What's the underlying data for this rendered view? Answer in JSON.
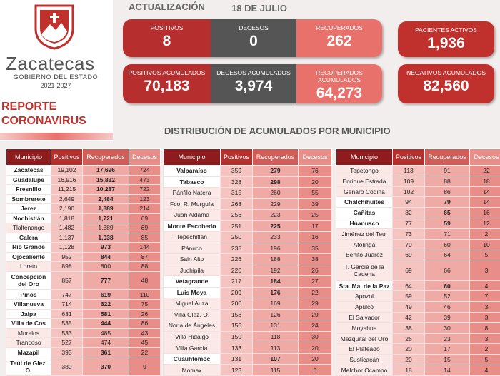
{
  "header": {
    "brand": "Zacatecas",
    "government": "GOBIERNO DEL ESTADO",
    "period": "2021-2027",
    "report": [
      "REPORTE",
      "CORONAVIRUS"
    ]
  },
  "update": {
    "label": "ACTUALIZACIÓN",
    "date": "18 DE JULIO"
  },
  "stats": [
    {
      "label": "POSITIVOS",
      "value": "8"
    },
    {
      "label": "DECESOS",
      "value": "0"
    },
    {
      "label": "RECUPERADOS",
      "value": "262"
    },
    {
      "label": "PACIENTES ACTIVOS",
      "value": "1,936"
    },
    {
      "label": "POSITIVOS ACUMULADOS",
      "value": "70,183"
    },
    {
      "label": "DECESOS ACUMULADOS",
      "value": "3,974"
    },
    {
      "label": "RECUPERADOS ACUMULADOS",
      "value": "64,273"
    },
    {
      "label": "NEGATIVOS ACUMULADOS",
      "value": "82,560"
    }
  ],
  "section_title": "DISTRIBUCIÓN DE ACUMULADOS POR MUNICIPIO",
  "tables": [
    {
      "columns": [
        "Municipio",
        "Positivos",
        "Recuperados",
        "Decesos"
      ],
      "rows": [
        [
          "Zacatecas",
          "19,102",
          "17,696",
          "724"
        ],
        [
          "Guadalupe",
          "16,916",
          "15,832",
          "473"
        ],
        [
          "Fresnillo",
          "11,215",
          "10,287",
          "722"
        ],
        [
          "Sombrerete",
          "2,649",
          "2,484",
          "123"
        ],
        [
          "Jerez",
          "2,190",
          "1,889",
          "214"
        ],
        [
          "Nochistlán",
          "1,818",
          "1,721",
          "69"
        ],
        [
          "Tlaltenango",
          "1,482",
          "1,389",
          "69"
        ],
        [
          "Calera",
          "1,137",
          "1,038",
          "85"
        ],
        [
          "Río Grande",
          "1,128",
          "973",
          "144"
        ],
        [
          "Ojocaliente",
          "952",
          "844",
          "87"
        ],
        [
          "Loreto",
          "898",
          "800",
          "88"
        ],
        [
          "Concepción del Oro",
          "857",
          "777",
          "48"
        ],
        [
          "Pinos",
          "747",
          "619",
          "110"
        ],
        [
          "Villanueva",
          "714",
          "622",
          "75"
        ],
        [
          "Jalpa",
          "631",
          "581",
          "26"
        ],
        [
          "Villa de Cos",
          "535",
          "444",
          "86"
        ],
        [
          "Morelos",
          "533",
          "485",
          "43"
        ],
        [
          "Trancoso",
          "527",
          "474",
          "45"
        ],
        [
          "Mazapil",
          "393",
          "361",
          "22"
        ],
        [
          "Teúl de Glez. O.",
          "380",
          "370",
          "9"
        ]
      ]
    },
    {
      "columns": [
        "Municipio",
        "Positivos",
        "Recuperados",
        "Decesos"
      ],
      "rows": [
        [
          "Valparaíso",
          "359",
          "279",
          "76"
        ],
        [
          "Tabasco",
          "328",
          "298",
          "20"
        ],
        [
          "Pánfilo Natera",
          "315",
          "260",
          "55"
        ],
        [
          "Fco. R. Murguía",
          "268",
          "229",
          "39"
        ],
        [
          "Juan Aldama",
          "256",
          "223",
          "25"
        ],
        [
          "Monte Escobedo",
          "251",
          "225",
          "17"
        ],
        [
          "Tepechitlán",
          "250",
          "233",
          "16"
        ],
        [
          "Pánuco",
          "235",
          "196",
          "35"
        ],
        [
          "Sain Alto",
          "226",
          "188",
          "38"
        ],
        [
          "Juchipila",
          "220",
          "192",
          "26"
        ],
        [
          "Vetagrande",
          "217",
          "184",
          "27"
        ],
        [
          "Luis Moya",
          "209",
          "176",
          "22"
        ],
        [
          "Miguel Auza",
          "200",
          "169",
          "29"
        ],
        [
          "Villa Glez. O.",
          "158",
          "126",
          "29"
        ],
        [
          "Noria de Ángeles",
          "156",
          "131",
          "24"
        ],
        [
          "Villa Hidalgo",
          "150",
          "118",
          "30"
        ],
        [
          "Villa García",
          "133",
          "113",
          "20"
        ],
        [
          "Cuauhtémoc",
          "131",
          "107",
          "20"
        ],
        [
          "Momax",
          "123",
          "115",
          "6"
        ]
      ]
    },
    {
      "columns": [
        "Municipio",
        "Positivos",
        "Recuperados",
        "Decesos"
      ],
      "rows": [
        [
          "Tepetongo",
          "113",
          "91",
          "22"
        ],
        [
          "Enrique Estrada",
          "109",
          "88",
          "18"
        ],
        [
          "Genaro Codina",
          "102",
          "86",
          "14"
        ],
        [
          "Chalchihuites",
          "94",
          "79",
          "14"
        ],
        [
          "Cañitas",
          "82",
          "65",
          "16"
        ],
        [
          "Huanusco",
          "77",
          "59",
          "12"
        ],
        [
          "Jiménez del Teul",
          "73",
          "71",
          "2"
        ],
        [
          "Atolinga",
          "70",
          "60",
          "10"
        ],
        [
          "Benito Juárez",
          "69",
          "64",
          "5"
        ],
        [
          "T. García de la Cadena",
          "69",
          "66",
          "3"
        ],
        [
          "Sta. Ma. de la Paz",
          "64",
          "60",
          "4"
        ],
        [
          "Apozol",
          "59",
          "52",
          "7"
        ],
        [
          "Apulco",
          "49",
          "46",
          "3"
        ],
        [
          "El Salvador",
          "42",
          "39",
          "3"
        ],
        [
          "Moyahua",
          "38",
          "30",
          "8"
        ],
        [
          "Mezquital del Oro",
          "26",
          "23",
          "3"
        ],
        [
          "El Plateado",
          "20",
          "17",
          "2"
        ],
        [
          "Susticacán",
          "20",
          "15",
          "5"
        ],
        [
          "Melchor Ocampo",
          "18",
          "14",
          "4"
        ]
      ]
    }
  ]
}
